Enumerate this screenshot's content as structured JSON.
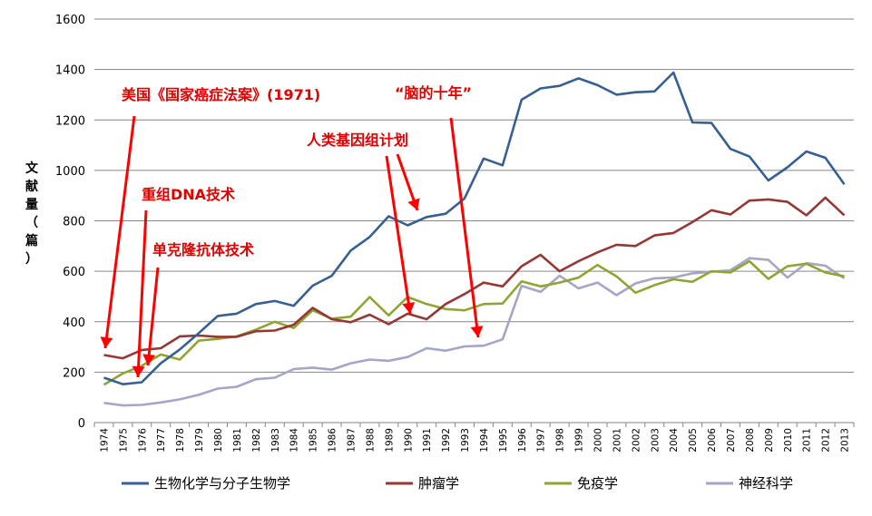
{
  "chart_data": {
    "type": "line",
    "ylabel": "文献量（篇）",
    "ylim": [
      0,
      1600
    ],
    "yticks": [
      0,
      200,
      400,
      600,
      800,
      1000,
      1200,
      1400,
      1600
    ],
    "grid": true,
    "legend_position": "bottom",
    "x": [
      "1974",
      "1975",
      "1976",
      "1977",
      "1978",
      "1979",
      "1980",
      "1981",
      "1982",
      "1983",
      "1984",
      "1985",
      "1986",
      "1987",
      "1988",
      "1989",
      "1990",
      "1991",
      "1992",
      "1993",
      "1994",
      "1995",
      "1996",
      "1997",
      "1998",
      "1999",
      "2000",
      "2001",
      "2002",
      "2003",
      "2004",
      "2005",
      "2006",
      "2007",
      "2008",
      "2009",
      "2010",
      "2011",
      "2012",
      "2013"
    ],
    "series": [
      {
        "name": "生物化学与分子生物学",
        "color": "#376092",
        "values": [
          178,
          152,
          160,
          235,
          290,
          355,
          423,
          432,
          470,
          482,
          463,
          543,
          582,
          682,
          736,
          818,
          782,
          815,
          828,
          889,
          1047,
          1020,
          1280,
          1325,
          1335,
          1365,
          1338,
          1300,
          1310,
          1313,
          1388,
          1190,
          1188,
          1085,
          1055,
          960,
          1012,
          1075,
          1050,
          945
        ]
      },
      {
        "name": "肿瘤学",
        "color": "#953735",
        "values": [
          268,
          255,
          288,
          295,
          342,
          345,
          340,
          340,
          362,
          365,
          388,
          455,
          410,
          398,
          428,
          390,
          432,
          410,
          470,
          510,
          555,
          540,
          620,
          665,
          600,
          640,
          675,
          705,
          700,
          742,
          752,
          795,
          842,
          825,
          880,
          885,
          875,
          822,
          892,
          822
        ]
      },
      {
        "name": "免疫学",
        "color": "#8ea531",
        "values": [
          150,
          195,
          225,
          270,
          250,
          325,
          332,
          342,
          368,
          400,
          375,
          445,
          412,
          420,
          498,
          425,
          498,
          470,
          450,
          445,
          470,
          472,
          560,
          540,
          555,
          575,
          625,
          580,
          515,
          545,
          568,
          558,
          600,
          595,
          640,
          570,
          620,
          630,
          595,
          580
        ]
      },
      {
        "name": "神经科学",
        "color": "#a5a5c8",
        "values": [
          78,
          68,
          70,
          80,
          92,
          110,
          135,
          142,
          172,
          178,
          212,
          218,
          210,
          235,
          250,
          245,
          260,
          295,
          285,
          302,
          305,
          330,
          542,
          518,
          582,
          532,
          555,
          505,
          552,
          572,
          575,
          592,
          598,
          604,
          652,
          645,
          575,
          632,
          622,
          572
        ]
      }
    ],
    "annotations": [
      {
        "text": "美国《国家癌症法案》(1971)",
        "color": "#e00000"
      },
      {
        "text": "重组DNA技术",
        "color": "#e00000"
      },
      {
        "text": "单克隆抗体技术",
        "color": "#e00000"
      },
      {
        "text": "人类基因组计划",
        "color": "#e00000"
      },
      {
        "text": "“脑的十年”",
        "color": "#e00000"
      }
    ]
  }
}
